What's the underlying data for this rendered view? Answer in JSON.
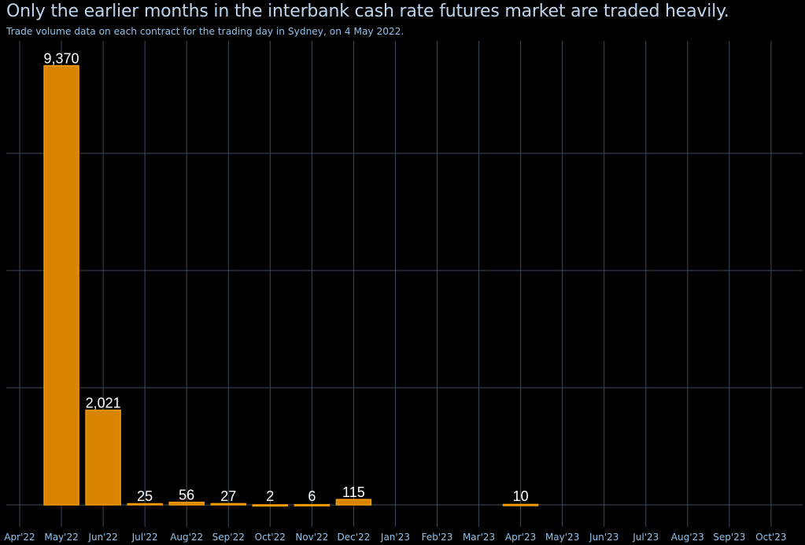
{
  "chart_data": {
    "type": "bar",
    "title": "Only the earlier months in the interbank cash rate futures market are traded heavily.",
    "subtitle": "Trade volume data on each contract for the trading day in Sydney, on 4 May 2022.",
    "xlabel": "",
    "ylabel": "",
    "categories": [
      "Apr'22",
      "May'22",
      "Jun'22",
      "Jul'22",
      "Aug'22",
      "Sep'22",
      "Oct'22",
      "Nov'22",
      "Dec'22",
      "Jan'23",
      "Feb'23",
      "Mar'23",
      "Apr'23",
      "May'23",
      "Jun'23",
      "Jul'23",
      "Aug'23",
      "Sep'23",
      "Oct'23"
    ],
    "values": [
      null,
      9370,
      2021,
      25,
      56,
      27,
      2,
      6,
      115,
      null,
      null,
      null,
      10,
      null,
      null,
      null,
      null,
      null,
      null
    ],
    "value_labels": [
      null,
      "9,370",
      "2,021",
      "25",
      "56",
      "27",
      "2",
      "6",
      "115",
      null,
      null,
      null,
      "10",
      null,
      null,
      null,
      null,
      null,
      null
    ],
    "ylim": [
      0,
      9900
    ],
    "y_gridlines": [
      0,
      2500,
      5000,
      7500
    ],
    "grid": true,
    "colors": {
      "bar": "#d98400",
      "bar_edge": "#f59c00",
      "grid": "#3b4b5a",
      "text": "#8fc3ea"
    }
  }
}
